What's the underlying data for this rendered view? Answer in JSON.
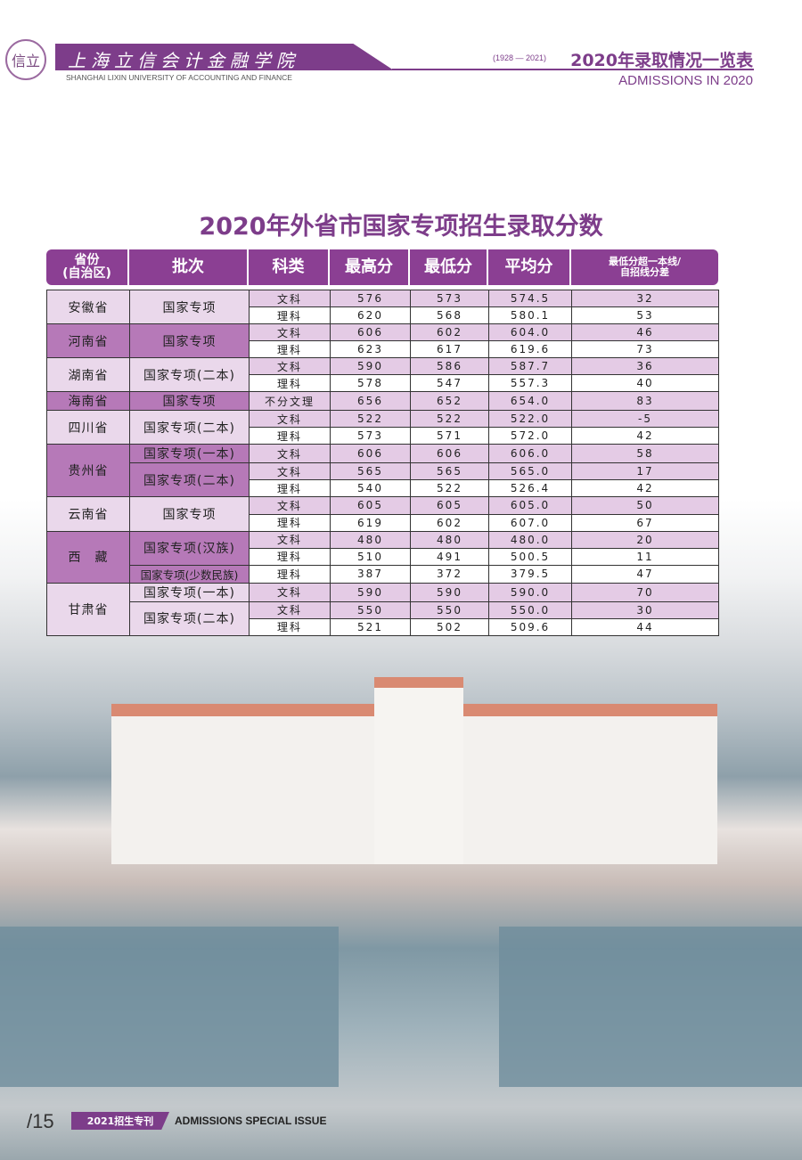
{
  "header": {
    "logo_text": "信立",
    "cn_name": "上海立信会计金融学院",
    "en_name": "SHANGHAI LIXIN UNIVERSITY OF ACCOUNTING AND FINANCE",
    "years": "(1928 — 2021)",
    "title": "2020年录取情况一览表",
    "subtitle": "ADMISSIONS IN 2020"
  },
  "table": {
    "title": "2020年外省市国家专项招生录取分数",
    "columns": [
      "省份\n(自治区)",
      "批次",
      "科类",
      "最高分",
      "最低分",
      "平均分",
      "最低分超一本线/\n自招线分差"
    ],
    "groups": [
      {
        "province": "安徽省",
        "shade": "light",
        "batches": [
          {
            "name": "国家专项",
            "rows": [
              [
                "文科",
                "576",
                "573",
                "574.5",
                "32"
              ],
              [
                "理科",
                "620",
                "568",
                "580.1",
                "53"
              ]
            ]
          }
        ]
      },
      {
        "province": "河南省",
        "shade": "dark",
        "batches": [
          {
            "name": "国家专项",
            "rows": [
              [
                "文科",
                "606",
                "602",
                "604.0",
                "46"
              ],
              [
                "理科",
                "623",
                "617",
                "619.6",
                "73"
              ]
            ]
          }
        ]
      },
      {
        "province": "湖南省",
        "shade": "light",
        "batches": [
          {
            "name": "国家专项(二本)",
            "rows": [
              [
                "文科",
                "590",
                "586",
                "587.7",
                "36"
              ],
              [
                "理科",
                "578",
                "547",
                "557.3",
                "40"
              ]
            ]
          }
        ]
      },
      {
        "province": "海南省",
        "shade": "dark",
        "batches": [
          {
            "name": "国家专项",
            "rows": [
              [
                "不分文理",
                "656",
                "652",
                "654.0",
                "83"
              ]
            ]
          }
        ]
      },
      {
        "province": "四川省",
        "shade": "light",
        "batches": [
          {
            "name": "国家专项(二本)",
            "rows": [
              [
                "文科",
                "522",
                "522",
                "522.0",
                "-5"
              ],
              [
                "理科",
                "573",
                "571",
                "572.0",
                "42"
              ]
            ]
          }
        ]
      },
      {
        "province": "贵州省",
        "shade": "dark",
        "batches": [
          {
            "name": "国家专项(一本)",
            "rows": [
              [
                "文科",
                "606",
                "606",
                "606.0",
                "58"
              ]
            ]
          },
          {
            "name": "国家专项(二本)",
            "rows": [
              [
                "文科",
                "565",
                "565",
                "565.0",
                "17"
              ],
              [
                "理科",
                "540",
                "522",
                "526.4",
                "42"
              ]
            ]
          }
        ]
      },
      {
        "province": "云南省",
        "shade": "light",
        "batches": [
          {
            "name": "国家专项",
            "rows": [
              [
                "文科",
                "605",
                "605",
                "605.0",
                "50"
              ],
              [
                "理科",
                "619",
                "602",
                "607.0",
                "67"
              ]
            ]
          }
        ]
      },
      {
        "province": "西　藏",
        "shade": "dark",
        "batches": [
          {
            "name": "国家专项(汉族)",
            "rows": [
              [
                "文科",
                "480",
                "480",
                "480.0",
                "20"
              ],
              [
                "理科",
                "510",
                "491",
                "500.5",
                "11"
              ]
            ]
          },
          {
            "name": "国家专项(少数民族)",
            "rows": [
              [
                "理科",
                "387",
                "372",
                "379.5",
                "47"
              ]
            ]
          }
        ]
      },
      {
        "province": "甘肃省",
        "shade": "light",
        "batches": [
          {
            "name": "国家专项(一本)",
            "rows": [
              [
                "文科",
                "590",
                "590",
                "590.0",
                "70"
              ]
            ]
          },
          {
            "name": "国家专项(二本)",
            "rows": [
              [
                "文科",
                "550",
                "550",
                "550.0",
                "30"
              ],
              [
                "理科",
                "521",
                "502",
                "509.6",
                "44"
              ]
            ]
          }
        ]
      }
    ]
  },
  "footer": {
    "page": "/15",
    "tag": "2021招生专刊",
    "label": "ADMISSIONS SPECIAL ISSUE"
  },
  "colors": {
    "brand": "#7d3d8a",
    "light": "#ead8eb",
    "dark": "#b679b8"
  }
}
